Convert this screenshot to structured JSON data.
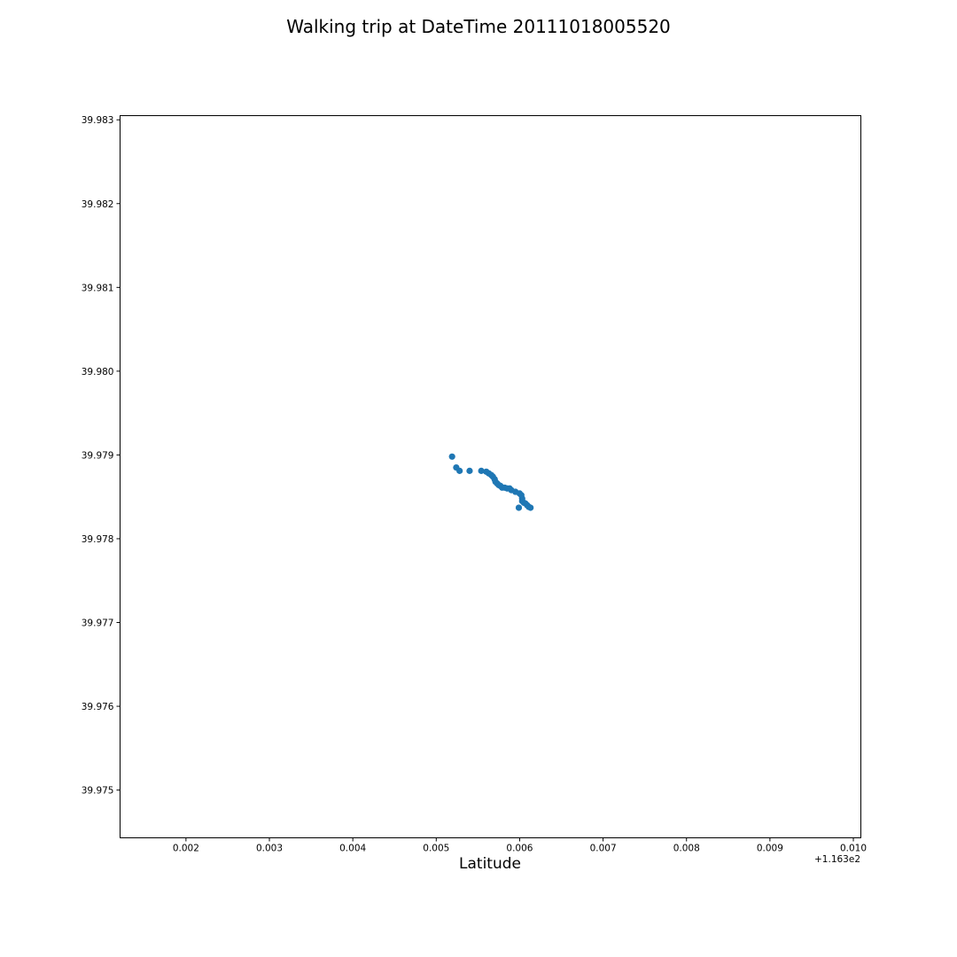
{
  "chart_data": {
    "type": "scatter",
    "title": "Walking trip at DateTime 20111018005520",
    "xlabel": "Latitude",
    "ylabel": "",
    "x_offset_label": "+1.163e2",
    "xlim": [
      0.00121,
      0.01009
    ],
    "ylim": [
      39.97443,
      39.98305
    ],
    "x_ticks": [
      {
        "value": 0.002,
        "label": "0.002"
      },
      {
        "value": 0.003,
        "label": "0.003"
      },
      {
        "value": 0.004,
        "label": "0.004"
      },
      {
        "value": 0.005,
        "label": "0.005"
      },
      {
        "value": 0.006,
        "label": "0.006"
      },
      {
        "value": 0.007,
        "label": "0.007"
      },
      {
        "value": 0.008,
        "label": "0.008"
      },
      {
        "value": 0.009,
        "label": "0.009"
      },
      {
        "value": 0.01,
        "label": "0.010"
      }
    ],
    "y_ticks": [
      {
        "value": 39.975,
        "label": "39.975"
      },
      {
        "value": 39.976,
        "label": "39.976"
      },
      {
        "value": 39.977,
        "label": "39.977"
      },
      {
        "value": 39.978,
        "label": "39.978"
      },
      {
        "value": 39.979,
        "label": "39.979"
      },
      {
        "value": 39.98,
        "label": "39.980"
      },
      {
        "value": 39.981,
        "label": "39.981"
      },
      {
        "value": 39.982,
        "label": "39.982"
      },
      {
        "value": 39.983,
        "label": "39.983"
      }
    ],
    "grid": false,
    "marker_color": "#1f77b4",
    "series": [
      {
        "points": [
          [
            0.00519,
            39.97898
          ],
          [
            0.00524,
            39.97885
          ],
          [
            0.00528,
            39.97881
          ],
          [
            0.0054,
            39.97881
          ],
          [
            0.00554,
            39.97881
          ],
          [
            0.0056,
            39.9788
          ],
          [
            0.00563,
            39.97878
          ],
          [
            0.00566,
            39.97876
          ],
          [
            0.00568,
            39.97874
          ],
          [
            0.0057,
            39.97871
          ],
          [
            0.00571,
            39.97868
          ],
          [
            0.00573,
            39.97866
          ],
          [
            0.00575,
            39.97864
          ],
          [
            0.00577,
            39.97863
          ],
          [
            0.00579,
            39.97861
          ],
          [
            0.00582,
            39.97861
          ],
          [
            0.00585,
            39.9786
          ],
          [
            0.00588,
            39.9786
          ],
          [
            0.0059,
            39.97858
          ],
          [
            0.00595,
            39.97856
          ],
          [
            0.006,
            39.97854
          ],
          [
            0.00602,
            39.97852
          ],
          [
            0.00603,
            39.97848
          ],
          [
            0.00603,
            39.97845
          ],
          [
            0.00605,
            39.97843
          ],
          [
            0.00607,
            39.97842
          ],
          [
            0.00609,
            39.9784
          ],
          [
            0.00611,
            39.97838
          ],
          [
            0.00613,
            39.97837
          ],
          [
            0.00599,
            39.97837
          ]
        ]
      }
    ]
  }
}
